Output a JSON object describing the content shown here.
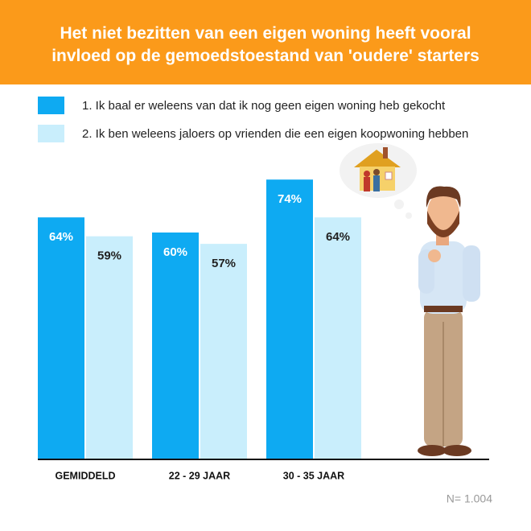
{
  "chart_data": {
    "type": "bar",
    "title": "Het niet bezitten van een eigen woning heeft vooral invloed op de gemoedstoestand van 'oudere' starters",
    "categories": [
      "GEMIDDELD",
      "22 - 29 JAAR",
      "30 - 35 JAAR"
    ],
    "series": [
      {
        "name": "1.   Ik baal er weleens van dat ik nog geen eigen woning heb gekocht",
        "color": "#0eaaf2",
        "values": [
          64,
          60,
          74
        ],
        "value_labels": [
          "64%",
          "60%",
          "74%"
        ]
      },
      {
        "name": "2.  Ik ben weleens jaloers op vrienden die een eigen koopwoning hebben",
        "color": "#c9eefc",
        "values": [
          59,
          57,
          64
        ],
        "value_labels": [
          "59%",
          "57%",
          "64%"
        ]
      }
    ],
    "ylim": [
      0,
      100
    ],
    "note": "N= 1.004"
  }
}
